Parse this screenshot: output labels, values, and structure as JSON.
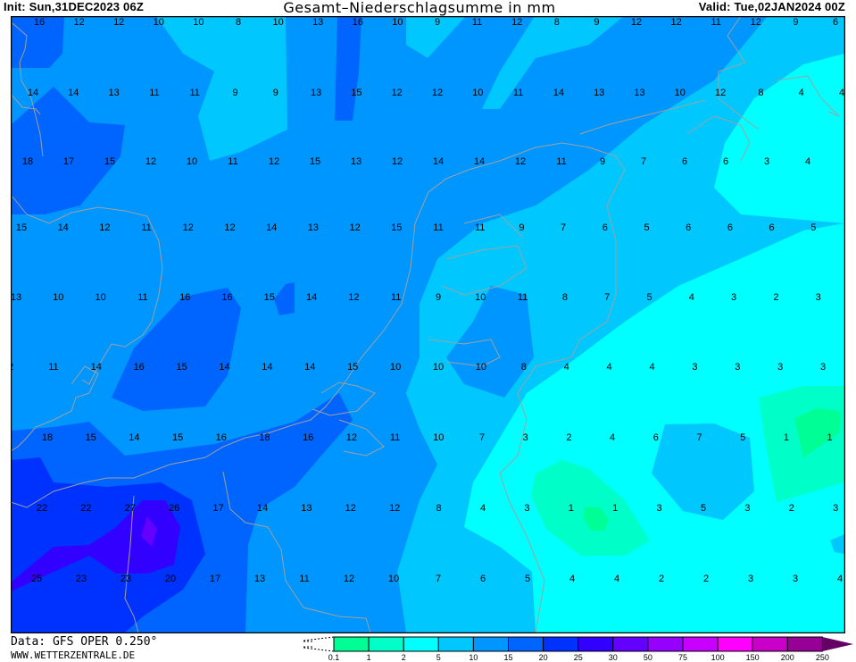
{
  "header": {
    "init": "Init: Sun,31DEC2023 06Z",
    "title": "Gesamt–Niederschlagsumme in mm",
    "valid": "Valid: Tue,02JAN2024 00Z"
  },
  "footer": {
    "source": "Data: GFS OPER 0.250°",
    "site": "WWW.WETTERZENTRALE.DE"
  },
  "legend": {
    "labels": [
      "0.1",
      "1",
      "2",
      "5",
      "10",
      "15",
      "20",
      "25",
      "30",
      "50",
      "75",
      "100",
      "150",
      "200",
      "250"
    ],
    "colors": [
      "#00fe96",
      "#00ffc8",
      "#00ffff",
      "#00c8ff",
      "#0096ff",
      "#0064ff",
      "#0032ff",
      "#3200ff",
      "#6400ff",
      "#9600ff",
      "#c800ff",
      "#ff00ff",
      "#c800c8",
      "#960096"
    ],
    "overflow_color": "#640064"
  },
  "map": {
    "unit": "mm",
    "coastline_color": "#a0a0a0",
    "value_rows": [
      [
        16,
        12,
        12,
        10,
        10,
        8,
        10,
        13,
        16,
        10,
        9,
        11,
        12,
        8,
        9,
        12,
        12,
        11,
        12,
        9,
        6
      ],
      [
        14,
        14,
        13,
        11,
        11,
        9,
        9,
        13,
        15,
        12,
        12,
        10,
        11,
        14,
        13,
        13,
        10,
        12,
        8,
        4,
        4
      ],
      [
        18,
        17,
        15,
        12,
        10,
        11,
        12,
        15,
        13,
        12,
        14,
        14,
        12,
        11,
        9,
        7,
        6,
        6,
        3,
        4
      ],
      [
        15,
        14,
        12,
        11,
        12,
        12,
        14,
        13,
        12,
        15,
        11,
        11,
        9,
        7,
        6,
        5,
        6,
        6,
        6,
        5
      ],
      [
        13,
        10,
        10,
        11,
        16,
        16,
        15,
        14,
        12,
        11,
        9,
        10,
        11,
        8,
        7,
        5,
        4,
        3,
        2,
        3
      ],
      [
        2,
        11,
        14,
        16,
        15,
        14,
        14,
        14,
        15,
        10,
        10,
        10,
        8,
        4,
        4,
        4,
        3,
        3,
        3,
        3
      ],
      [
        18,
        15,
        14,
        15,
        16,
        18,
        16,
        12,
        11,
        10,
        7,
        3,
        2,
        4,
        6,
        7,
        5,
        1,
        1
      ],
      [
        22,
        22,
        27,
        26,
        17,
        14,
        13,
        12,
        12,
        8,
        4,
        3,
        1,
        1,
        3,
        5,
        3,
        2,
        3
      ],
      [
        25,
        23,
        23,
        20,
        17,
        13,
        11,
        12,
        10,
        7,
        6,
        5,
        4,
        4,
        2,
        2,
        3,
        3,
        4
      ]
    ]
  }
}
